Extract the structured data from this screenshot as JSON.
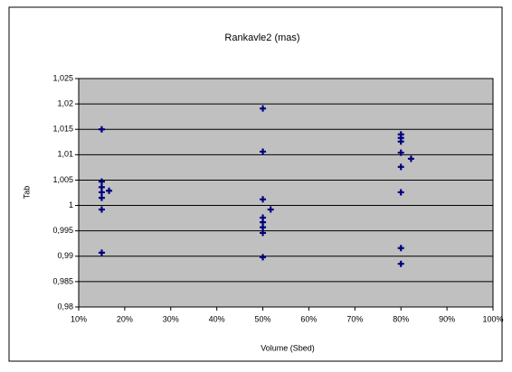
{
  "chart_data": {
    "type": "scatter",
    "title": "Rankavle2 (mas)",
    "x_label": "Volume (Sbed)",
    "y_label": "Tab",
    "color": "#000080",
    "grid": true,
    "plot_background": "#c0c0c0",
    "xlim": [
      10,
      100
    ],
    "ylim": [
      0.98,
      1.025
    ],
    "xticks": [
      {
        "value": 10,
        "label": "10%"
      },
      {
        "value": 20,
        "label": "20%"
      },
      {
        "value": 30,
        "label": "30%"
      },
      {
        "value": 40,
        "label": "40%"
      },
      {
        "value": 50,
        "label": "50%"
      },
      {
        "value": 60,
        "label": "60%"
      },
      {
        "value": 70,
        "label": "70%"
      },
      {
        "value": 80,
        "label": "80%"
      },
      {
        "value": 90,
        "label": "90%"
      },
      {
        "value": 100,
        "label": "100%"
      }
    ],
    "yticks": [
      {
        "value": 0.98,
        "label": "0,98"
      },
      {
        "value": 0.985,
        "label": "0,985"
      },
      {
        "value": 0.99,
        "label": "0,99"
      },
      {
        "value": 0.995,
        "label": "0,995"
      },
      1,
      {
        "value": 1.005,
        "label": "1,005"
      },
      {
        "value": 1.01,
        "label": "1,01"
      },
      {
        "value": 1.015,
        "label": "1,015"
      },
      {
        "value": 1.02,
        "label": "1,02"
      },
      {
        "value": 1.025,
        "label": "1,025"
      }
    ],
    "x": [
      15,
      15,
      15,
      15,
      15,
      15,
      15,
      16.6,
      50,
      50,
      50,
      50,
      50,
      50,
      50,
      50,
      51.7,
      80,
      80,
      80,
      80,
      80,
      80,
      80,
      80,
      82.2
    ],
    "y": [
      1.015,
      1.0047,
      1.0036,
      1.0026,
      1.0015,
      0.9992,
      0.9907,
      1.0029,
      1.0191,
      1.0106,
      1.0012,
      0.9976,
      0.9967,
      0.9957,
      0.9946,
      0.9898,
      0.9992,
      1.014,
      1.0133,
      1.0126,
      1.0104,
      1.0076,
      1.0026,
      0.9916,
      0.9885,
      1.0092
    ]
  }
}
